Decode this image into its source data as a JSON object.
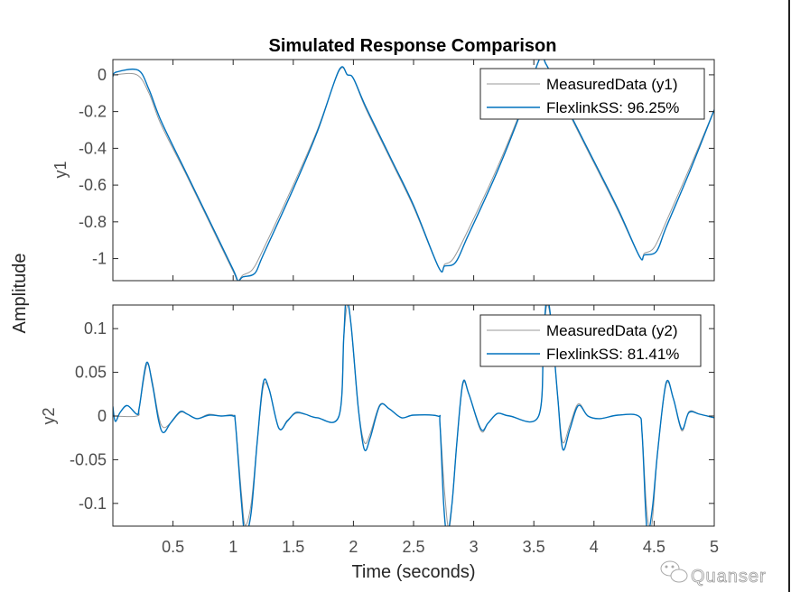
{
  "chart_data": {
    "type": "line",
    "title": "Simulated Response Comparison",
    "xlabel": "Time (seconds)",
    "ylabel": "Amplitude",
    "grid": false,
    "xlim": [
      0,
      5
    ],
    "xticks": [
      0.5,
      1,
      1.5,
      2,
      2.5,
      3,
      3.5,
      4,
      4.5,
      5
    ],
    "xtick_labels": [
      "0.5",
      "1",
      "1.5",
      "2",
      "2.5",
      "3",
      "3.5",
      "4",
      "4.5",
      "5"
    ],
    "subplots": [
      {
        "id": "y1",
        "ylabel": "y1",
        "ylim": [
          -1.12,
          0.083
        ],
        "yticks": [
          0,
          -0.2,
          -0.4,
          -0.6,
          -0.8,
          -1
        ],
        "ytick_labels": [
          "0",
          "-0.2",
          "-0.4",
          "-0.6",
          "-0.8",
          "-1"
        ],
        "legend_position": "top-right",
        "series": [
          {
            "name": "MeasuredData (y1)",
            "color": "#999999",
            "x": [
              0,
              0.02,
              0.2,
              0.3,
              0.4,
              0.6,
              0.8,
              1.0,
              1.04,
              1.08,
              1.16,
              1.25,
              1.5,
              1.7,
              1.88,
              1.95,
              2.0,
              2.1,
              2.3,
              2.5,
              2.71,
              2.76,
              2.83,
              2.95,
              3.2,
              3.4,
              3.55,
              3.6,
              3.7,
              3.8,
              4.0,
              4.2,
              4.38,
              4.42,
              4.5,
              4.6,
              4.8,
              5.0
            ],
            "y": [
              -0.01,
              0.0,
              0.0,
              -0.1,
              -0.27,
              -0.53,
              -0.8,
              -1.07,
              -1.12,
              -1.09,
              -1.06,
              -0.95,
              -0.6,
              -0.3,
              0.02,
              0.0,
              -0.02,
              -0.18,
              -0.45,
              -0.72,
              -1.05,
              -1.03,
              -1.0,
              -0.85,
              -0.5,
              -0.18,
              0.09,
              0.06,
              -0.08,
              -0.22,
              -0.48,
              -0.74,
              -0.99,
              -0.97,
              -0.94,
              -0.8,
              -0.5,
              -0.19
            ]
          },
          {
            "name": "FlexlinkSS: 96.25%",
            "color": "#0072BD",
            "x": [
              0,
              0.03,
              0.21,
              0.3,
              0.4,
              0.6,
              0.8,
              1.0,
              1.04,
              1.08,
              1.18,
              1.25,
              1.5,
              1.7,
              1.88,
              1.95,
              2.0,
              2.1,
              2.3,
              2.5,
              2.71,
              2.76,
              2.85,
              2.95,
              3.2,
              3.4,
              3.55,
              3.6,
              3.7,
              3.8,
              4.0,
              4.2,
              4.38,
              4.42,
              4.52,
              4.6,
              4.8,
              5.0
            ],
            "y": [
              -0.01,
              0.015,
              0.025,
              -0.08,
              -0.25,
              -0.52,
              -0.79,
              -1.06,
              -1.12,
              -1.1,
              -1.08,
              -0.98,
              -0.62,
              -0.31,
              0.025,
              0.0,
              -0.02,
              -0.17,
              -0.44,
              -0.71,
              -1.05,
              -1.04,
              -1.02,
              -0.88,
              -0.52,
              -0.19,
              0.09,
              0.06,
              -0.07,
              -0.21,
              -0.47,
              -0.73,
              -0.99,
              -0.98,
              -0.96,
              -0.83,
              -0.52,
              -0.19
            ]
          }
        ]
      },
      {
        "id": "y2",
        "ylabel": "y2",
        "ylim": [
          -0.126,
          0.127
        ],
        "yticks": [
          0.1,
          0.05,
          0,
          -0.05,
          -0.1
        ],
        "ytick_labels": [
          "0.1",
          "0.05",
          "0",
          "-0.05",
          "-0.1"
        ],
        "legend_position": "top-right",
        "series": [
          {
            "name": "MeasuredData (y2)",
            "color": "#999999",
            "x": [
              0,
              0.2,
              0.22,
              0.28,
              0.32,
              0.38,
              0.42,
              0.48,
              0.56,
              0.62,
              0.7,
              0.8,
              0.9,
              1.0,
              1.02,
              1.07,
              1.1,
              1.15,
              1.2,
              1.25,
              1.3,
              1.38,
              1.45,
              1.52,
              1.6,
              1.7,
              1.88,
              1.92,
              1.95,
              1.98,
              2.04,
              2.09,
              2.14,
              2.22,
              2.3,
              2.4,
              2.5,
              2.7,
              2.72,
              2.76,
              2.8,
              2.86,
              2.91,
              2.96,
              3.06,
              3.12,
              3.2,
              3.3,
              3.54,
              3.58,
              3.61,
              3.65,
              3.7,
              3.74,
              3.8,
              3.87,
              3.95,
              4.05,
              4.2,
              4.37,
              4.4,
              4.44,
              4.48,
              4.53,
              4.6,
              4.66,
              4.73,
              4.79,
              4.88,
              5.0
            ],
            "y": [
              0.0,
              0.0,
              0.01,
              0.058,
              0.045,
              0.0,
              -0.013,
              -0.008,
              0.004,
              0.002,
              -0.003,
              0.002,
              0.0,
              0.001,
              -0.01,
              -0.09,
              -0.125,
              -0.1,
              -0.03,
              0.033,
              0.03,
              -0.014,
              -0.005,
              0.003,
              0.002,
              -0.002,
              0.0,
              0.09,
              0.127,
              0.105,
              0.01,
              -0.03,
              -0.02,
              0.013,
              0.008,
              -0.002,
              0.001,
              0.0,
              -0.01,
              -0.09,
              -0.126,
              -0.03,
              0.036,
              0.025,
              -0.017,
              -0.008,
              0.003,
              0.0,
              0.0,
              0.09,
              0.127,
              0.1,
              0.02,
              -0.03,
              -0.01,
              0.014,
              0.0,
              -0.003,
              0.001,
              0.0,
              -0.02,
              -0.11,
              -0.126,
              -0.04,
              0.036,
              0.02,
              -0.017,
              0.005,
              0.002,
              -0.002
            ]
          },
          {
            "name": "FlexlinkSS: 81.41%",
            "color": "#0072BD",
            "x": [
              0,
              0.02,
              0.06,
              0.12,
              0.2,
              0.22,
              0.28,
              0.33,
              0.38,
              0.42,
              0.48,
              0.56,
              0.62,
              0.7,
              0.8,
              0.9,
              1.0,
              1.02,
              1.07,
              1.1,
              1.15,
              1.2,
              1.25,
              1.3,
              1.38,
              1.45,
              1.52,
              1.6,
              1.7,
              1.88,
              1.92,
              1.94,
              1.98,
              2.04,
              2.09,
              2.14,
              2.22,
              2.3,
              2.4,
              2.5,
              2.7,
              2.72,
              2.75,
              2.78,
              2.82,
              2.86,
              2.91,
              2.96,
              3.06,
              3.12,
              3.2,
              3.3,
              3.54,
              3.58,
              3.61,
              3.65,
              3.7,
              3.74,
              3.8,
              3.87,
              3.95,
              4.05,
              4.2,
              4.37,
              4.4,
              4.43,
              4.45,
              4.49,
              4.53,
              4.6,
              4.66,
              4.73,
              4.79,
              4.88,
              5.0
            ],
            "y": [
              0.011,
              -0.006,
              0.004,
              0.012,
              0.002,
              0.01,
              0.061,
              0.035,
              -0.005,
              -0.019,
              -0.008,
              0.005,
              0.002,
              -0.003,
              0.001,
              0.0,
              0.0,
              -0.01,
              -0.1,
              -0.135,
              -0.11,
              -0.03,
              0.038,
              0.03,
              -0.014,
              -0.006,
              0.004,
              0.002,
              -0.002,
              0.0,
              0.09,
              0.135,
              0.105,
              0.01,
              -0.038,
              -0.025,
              0.012,
              0.008,
              -0.002,
              0.001,
              0.0,
              -0.01,
              -0.1,
              -0.135,
              -0.1,
              -0.03,
              0.038,
              0.025,
              -0.015,
              -0.008,
              0.003,
              0.0,
              0.0,
              0.09,
              0.135,
              0.1,
              0.02,
              -0.038,
              -0.015,
              0.012,
              0.0,
              -0.003,
              0.001,
              0.0,
              -0.02,
              -0.11,
              -0.135,
              -0.1,
              -0.04,
              0.038,
              0.02,
              -0.015,
              0.004,
              0.002,
              -0.002
            ]
          }
        ]
      }
    ]
  },
  "watermark": {
    "icon": "wechat-icon",
    "text": "Quanser"
  }
}
